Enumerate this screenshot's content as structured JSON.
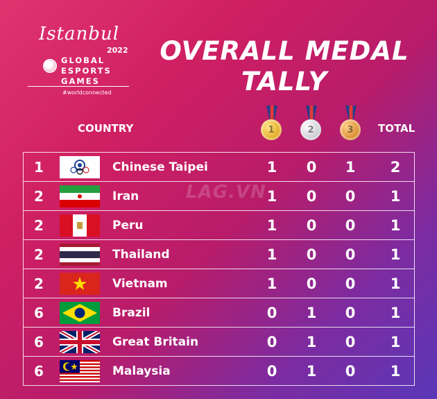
{
  "logo": {
    "script": "Istanbul",
    "year": "2022",
    "line1": "GLOBAL",
    "line2": "ESPORTS",
    "line3": "GAMES",
    "tag": "#worldconnected"
  },
  "title": {
    "line1": "OVERALL MEDAL",
    "line2": "TALLY"
  },
  "header": {
    "country": "COUNTRY",
    "total": "TOTAL",
    "medals": [
      {
        "label": "1",
        "type": "gold"
      },
      {
        "label": "2",
        "type": "silver"
      },
      {
        "label": "3",
        "type": "bronze"
      }
    ]
  },
  "watermark": "LAG.VN",
  "rows": [
    {
      "rank": "1",
      "country": "Chinese Taipei",
      "flag": "chinese-taipei-flag",
      "gold": "1",
      "silver": "0",
      "bronze": "1",
      "total": "2"
    },
    {
      "rank": "2",
      "country": "Iran",
      "flag": "iran-flag",
      "gold": "1",
      "silver": "0",
      "bronze": "0",
      "total": "1"
    },
    {
      "rank": "2",
      "country": "Peru",
      "flag": "peru-flag",
      "gold": "1",
      "silver": "0",
      "bronze": "0",
      "total": "1"
    },
    {
      "rank": "2",
      "country": "Thailand",
      "flag": "thailand-flag",
      "gold": "1",
      "silver": "0",
      "bronze": "0",
      "total": "1"
    },
    {
      "rank": "2",
      "country": "Vietnam",
      "flag": "vietnam-flag",
      "gold": "1",
      "silver": "0",
      "bronze": "0",
      "total": "1"
    },
    {
      "rank": "6",
      "country": "Brazil",
      "flag": "brazil-flag",
      "gold": "0",
      "silver": "1",
      "bronze": "0",
      "total": "1"
    },
    {
      "rank": "6",
      "country": "Great Britain",
      "flag": "great-britain-flag",
      "gold": "0",
      "silver": "1",
      "bronze": "0",
      "total": "1"
    },
    {
      "rank": "6",
      "country": "Malaysia",
      "flag": "malaysia-flag",
      "gold": "0",
      "silver": "1",
      "bronze": "0",
      "total": "1"
    }
  ]
}
